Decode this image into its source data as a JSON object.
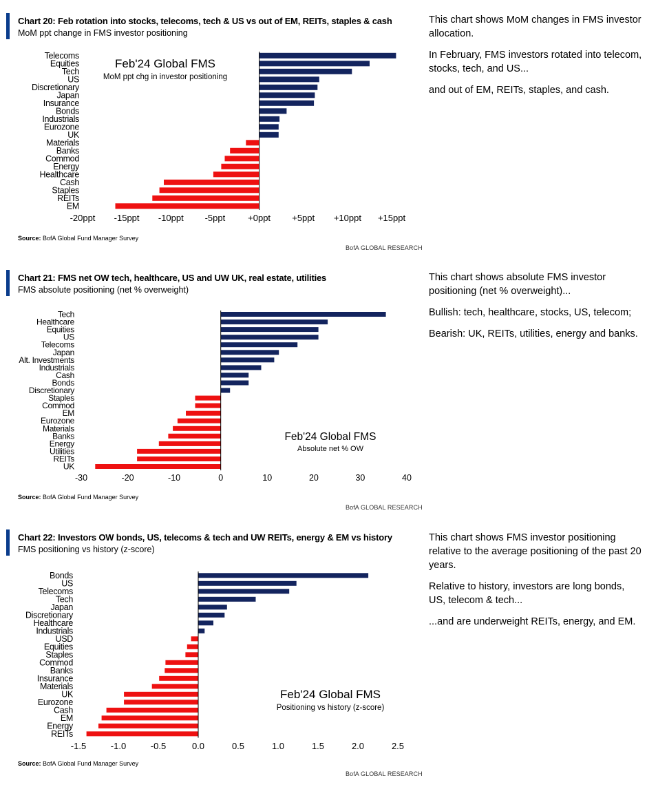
{
  "charts": [
    {
      "title": "Chart 20: Feb rotation into stocks, telecoms, tech & US vs out of EM, REITs, staples & cash",
      "subtitle": "MoM ppt change in FMS investor positioning",
      "source_label": "Source:",
      "source_text": "BofA Global Fund Manager Survey",
      "brand": "BofA GLOBAL RESEARCH",
      "notes": [
        "This chart shows MoM changes in FMS investor allocation.",
        "In February, FMS investors rotated into telecom, stocks, tech, and US...",
        "and out of EM, REITs, staples, and cash."
      ]
    },
    {
      "title": "Chart 21: FMS net OW tech, healthcare, US and UW UK, real estate, utilities",
      "subtitle": "FMS absolute positioning (net % overweight)",
      "source_label": "Source:",
      "source_text": "BofA Global Fund Manager Survey",
      "brand": "BofA GLOBAL RESEARCH",
      "notes": [
        "This chart shows absolute FMS investor positioning (net % overweight)...",
        "Bullish: tech, healthcare, stocks, US, telecom;",
        "Bearish: UK, REITs, utilities, energy and banks."
      ]
    },
    {
      "title": "Chart 22: Investors OW bonds, US, telecoms & tech and UW REITs, energy & EM vs history",
      "subtitle": "FMS positioning vs history (z-score)",
      "source_label": "Source:",
      "source_text": "BofA Global Fund Manager Survey",
      "brand": "BofA GLOBAL RESEARCH",
      "notes": [
        "This chart shows FMS investor positioning relative to the average positioning of the past 20 years.",
        "Relative to history, investors are long bonds, US, telecom & tech...",
        "...and are underweight REITs, energy, and EM."
      ]
    }
  ],
  "chart_data": [
    {
      "type": "bar",
      "orientation": "horizontal",
      "annotation_title": "Feb'24 Global FMS",
      "annotation_subtitle": "MoM ppt chg in investor positioning",
      "categories": [
        "Telecoms",
        "Equities",
        "Tech",
        "US",
        "Discretionary",
        "Japan",
        "Insurance",
        "Bonds",
        "Industrials",
        "Eurozone",
        "UK",
        "Materials",
        "Banks",
        "Commod",
        "Energy",
        "Healthcare",
        "Cash",
        "Staples",
        "REITs",
        "EM"
      ],
      "values": [
        15.5,
        12.5,
        10.5,
        6.8,
        6.6,
        6.3,
        6.2,
        3.1,
        2.3,
        2.2,
        2.2,
        -1.5,
        -3.3,
        -3.9,
        -4.3,
        -5.2,
        -10.8,
        -11.3,
        -12.1,
        -16.3
      ],
      "xlim": [
        -20,
        15
      ],
      "xticks": [
        -20,
        -15,
        -10,
        -5,
        0,
        5,
        10,
        15
      ],
      "xtick_labels": [
        "-20ppt",
        "-15ppt",
        "-10ppt",
        "-5ppt",
        "+0ppt",
        "+5ppt",
        "+10ppt",
        "+15ppt"
      ],
      "colors": {
        "positive": "#13245e",
        "negative": "#ee1111"
      }
    },
    {
      "type": "bar",
      "orientation": "horizontal",
      "annotation_title": "Feb'24 Global FMS",
      "annotation_subtitle": "Absolute net % OW",
      "categories": [
        "Tech",
        "Healthcare",
        "Equities",
        "US",
        "Telecoms",
        "Japan",
        "Alt. Investments",
        "Industrials",
        "Cash",
        "Bonds",
        "Discretionary",
        "Staples",
        "Commod",
        "EM",
        "Eurozone",
        "Materials",
        "Banks",
        "Energy",
        "Utilities",
        "REITs",
        "UK"
      ],
      "values": [
        35.5,
        23,
        21,
        21,
        16.5,
        12.5,
        11.5,
        8.7,
        6,
        6,
        2,
        -5.5,
        -5.5,
        -7.5,
        -9.3,
        -10.3,
        -11.3,
        -13.3,
        -18,
        -18,
        -27
      ],
      "xlim": [
        -30,
        40
      ],
      "xticks": [
        -30,
        -20,
        -10,
        0,
        10,
        20,
        30,
        40
      ],
      "xtick_labels": [
        "-30",
        "-20",
        "-10",
        "0",
        "10",
        "20",
        "30",
        "40"
      ],
      "colors": {
        "positive": "#13245e",
        "negative": "#ee1111"
      }
    },
    {
      "type": "bar",
      "orientation": "horizontal",
      "annotation_title": "Feb'24 Global FMS",
      "annotation_subtitle": "Positioning vs history (z-score)",
      "categories": [
        "Bonds",
        "US",
        "Telecoms",
        "Tech",
        "Japan",
        "Discretionary",
        "Healthcare",
        "Industrials",
        "USD",
        "Equities",
        "Staples",
        "Commod",
        "Banks",
        "Insurance",
        "Materials",
        "UK",
        "Eurozone",
        "Cash",
        "EM",
        "Energy",
        "REITs"
      ],
      "values": [
        2.13,
        1.23,
        1.14,
        0.72,
        0.36,
        0.33,
        0.19,
        0.08,
        -0.09,
        -0.14,
        -0.16,
        -0.41,
        -0.42,
        -0.49,
        -0.58,
        -0.93,
        -0.93,
        -1.15,
        -1.21,
        -1.25,
        -1.4
      ],
      "xlim": [
        -1.5,
        2.5
      ],
      "xticks": [
        -1.5,
        -1.0,
        -0.5,
        0.0,
        0.5,
        1.0,
        1.5,
        2.0,
        2.5
      ],
      "xtick_labels": [
        "-1.5",
        "-1.0",
        "-0.5",
        "0.0",
        "0.5",
        "1.0",
        "1.5",
        "2.0",
        "2.5"
      ],
      "colors": {
        "positive": "#13245e",
        "negative": "#ee1111"
      }
    }
  ]
}
